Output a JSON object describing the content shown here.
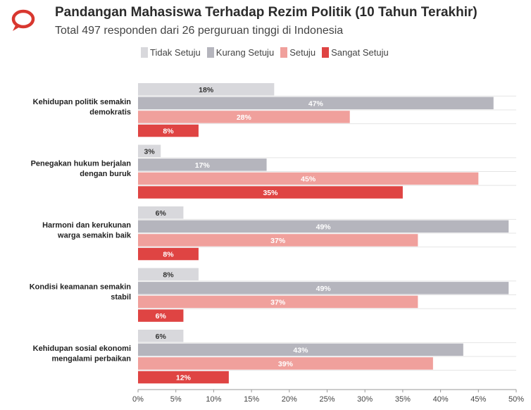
{
  "header": {
    "logo_icon": "speech-bubble-icon",
    "title": "Pandangan Mahasiswa Terhadap Rezim Politik (10 Tahun Terakhir)",
    "subtitle": "Total 497 responden dari 26 perguruan tinggi di Indonesia"
  },
  "colors": {
    "Tidak Setuju": "#d8d8dc",
    "Kurang Setuju": "#b5b5bd",
    "Setuju": "#f0a09c",
    "Sangat Setuju": "#df4443",
    "logo": "#d8372f"
  },
  "chart_data": {
    "type": "bar",
    "orientation": "horizontal",
    "title": "Pandangan Mahasiswa Terhadap Rezim Politik (10 Tahun Terakhir)",
    "subtitle": "Total 497 responden dari 26 perguruan tinggi di Indonesia",
    "categories": [
      [
        "Kehidupan politik semakin",
        "demokratis"
      ],
      [
        "Penegakan hukum berjalan",
        "dengan buruk"
      ],
      [
        "Harmoni dan kerukunan",
        "warga semakin baik"
      ],
      [
        "Kondisi keamanan semakin",
        "stabil"
      ],
      [
        "Kehidupan sosial ekonomi",
        "mengalami perbaikan"
      ]
    ],
    "series": [
      {
        "name": "Tidak Setuju",
        "values": [
          18,
          3,
          6,
          8,
          6
        ]
      },
      {
        "name": "Kurang Setuju",
        "values": [
          47,
          17,
          49,
          49,
          43
        ]
      },
      {
        "name": "Setuju",
        "values": [
          28,
          45,
          37,
          37,
          39
        ]
      },
      {
        "name": "Sangat Setuju",
        "values": [
          8,
          35,
          8,
          6,
          12
        ]
      }
    ],
    "xlim": [
      0,
      50
    ],
    "xticks": [
      "0%",
      "5%",
      "10%",
      "15%",
      "20%",
      "25%",
      "30%",
      "35%",
      "40%",
      "45%",
      "50%"
    ],
    "value_suffix": "%",
    "legend_position": "top",
    "grid": false
  }
}
